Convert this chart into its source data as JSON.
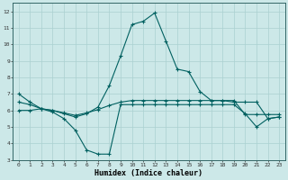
{
  "xlabel": "Humidex (Indice chaleur)",
  "background_color": "#cce8e8",
  "grid_color": "#aad0d0",
  "line_color": "#006060",
  "xlim": [
    -0.5,
    23.5
  ],
  "ylim": [
    3,
    12.5
  ],
  "xticks": [
    0,
    1,
    2,
    3,
    4,
    5,
    6,
    7,
    8,
    9,
    10,
    11,
    12,
    13,
    14,
    15,
    16,
    17,
    18,
    19,
    20,
    21,
    22,
    23
  ],
  "yticks": [
    3,
    4,
    5,
    6,
    7,
    8,
    9,
    10,
    11,
    12
  ],
  "line1_x": [
    0,
    1,
    2,
    3,
    4,
    5,
    6,
    7,
    8,
    9,
    10,
    11,
    12,
    13,
    14,
    15,
    16,
    17,
    18,
    19,
    20,
    21,
    22,
    23
  ],
  "line1_y": [
    7.0,
    6.5,
    6.1,
    6.0,
    5.8,
    5.6,
    5.8,
    6.2,
    7.5,
    9.3,
    11.2,
    11.4,
    11.9,
    10.2,
    8.5,
    8.35,
    7.15,
    6.6,
    6.6,
    6.5,
    6.5,
    6.5,
    5.5,
    5.6
  ],
  "line2_x": [
    0,
    1,
    2,
    3,
    4,
    5,
    6,
    7,
    8,
    9,
    10,
    11,
    12,
    13,
    14,
    15,
    16,
    17,
    18,
    19,
    20,
    21,
    22,
    23
  ],
  "line2_y": [
    6.5,
    6.35,
    6.1,
    6.0,
    5.85,
    5.7,
    5.85,
    6.05,
    6.3,
    6.5,
    6.6,
    6.6,
    6.6,
    6.6,
    6.6,
    6.6,
    6.6,
    6.6,
    6.6,
    6.6,
    5.75,
    5.75,
    5.75,
    5.75
  ],
  "line3_x": [
    0,
    1,
    2,
    3,
    4,
    5,
    6,
    7,
    8,
    9,
    10,
    11,
    12,
    13,
    14,
    15,
    16,
    17,
    18,
    19,
    20,
    21,
    22,
    23
  ],
  "line3_y": [
    6.0,
    6.0,
    6.1,
    5.9,
    5.5,
    4.8,
    3.6,
    3.35,
    3.35,
    6.35,
    6.35,
    6.35,
    6.35,
    6.35,
    6.35,
    6.35,
    6.35,
    6.35,
    6.35,
    6.35,
    5.8,
    5.0,
    5.5,
    5.6
  ]
}
